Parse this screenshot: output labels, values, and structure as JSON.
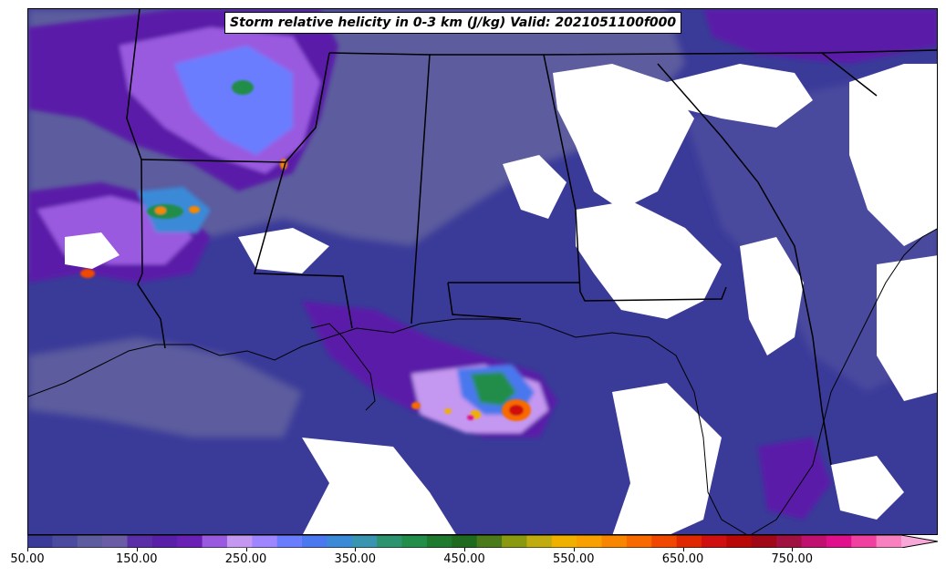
{
  "map": {
    "title": "Storm relative helicity in 0-3 km (J/kg) Valid: 2021051100f000",
    "variable": "Storm relative helicity in 0-3 km",
    "units": "J/kg",
    "valid_time": "2021051100f000",
    "region": "Southeastern United States and northern Gulf of Mexico",
    "features": [
      {
        "name": "strong-helicity-core-gulf",
        "description": "Maximum SRH (650-800+ J/kg) offshore south of Mississippi/Alabama coast"
      },
      {
        "name": "helicity-band-texas",
        "description": "Elevated SRH (450-700 J/kg) over eastern Texas"
      },
      {
        "name": "helicity-band-arkansas",
        "description": "Elevated SRH (250-450 J/kg) over Arkansas/Missouri"
      },
      {
        "name": "low-helicity-areas",
        "description": "Values below 50 J/kg (white) over Alabama, Georgia, Carolinas and far southwest Gulf"
      }
    ]
  },
  "colorbar": {
    "min": 50,
    "max": 850,
    "step": 25,
    "extend": "max",
    "tick_labels": [
      "50.00",
      "150.00",
      "250.00",
      "350.00",
      "450.00",
      "550.00",
      "650.00",
      "750.00"
    ],
    "tick_values": [
      50,
      150,
      250,
      350,
      450,
      550,
      650,
      750
    ],
    "colors": [
      "#3a3a99",
      "#4a4a9e",
      "#5c5c9e",
      "#6b5ca6",
      "#5a2ea6",
      "#5a1fa8",
      "#6a20b5",
      "#9a5ae0",
      "#c497f0",
      "#9d86ff",
      "#6b7dff",
      "#4a78ee",
      "#3a8ad8",
      "#3a96b0",
      "#2e9470",
      "#238d4a",
      "#1e7a2e",
      "#1e6b20",
      "#4a7a1a",
      "#8a9a10",
      "#c0ac10",
      "#f0b000",
      "#f8a000",
      "#f88600",
      "#f86a00",
      "#f04800",
      "#e02800",
      "#d01010",
      "#b80808",
      "#a00818",
      "#a01040",
      "#c01070",
      "#e0108c",
      "#f040a0",
      "#f880c0"
    ],
    "extend_color": "#f8a8d8"
  }
}
